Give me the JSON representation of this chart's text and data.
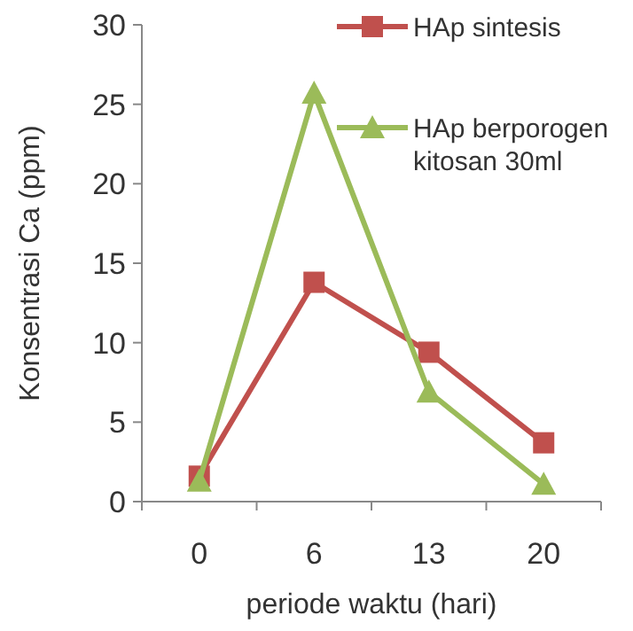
{
  "chart_data": {
    "type": "line",
    "xlabel": "periode waktu (hari)",
    "ylabel": "Konsentrasi Ca (ppm)",
    "categories": [
      "0",
      "6",
      "13",
      "20"
    ],
    "ylim": [
      0,
      30
    ],
    "yticks": [
      0,
      5,
      10,
      15,
      20,
      25,
      30
    ],
    "legend": "top right",
    "grid": false,
    "series": [
      {
        "name": "HAp sintesis",
        "color": "#c0504d",
        "marker": "square",
        "values": [
          1.6,
          13.8,
          9.4,
          3.7
        ]
      },
      {
        "name": "HAp berporogen kitosan 30ml",
        "color": "#9bbb59",
        "marker": "triangle",
        "values": [
          1.3,
          25.7,
          6.9,
          1.1
        ]
      }
    ]
  }
}
